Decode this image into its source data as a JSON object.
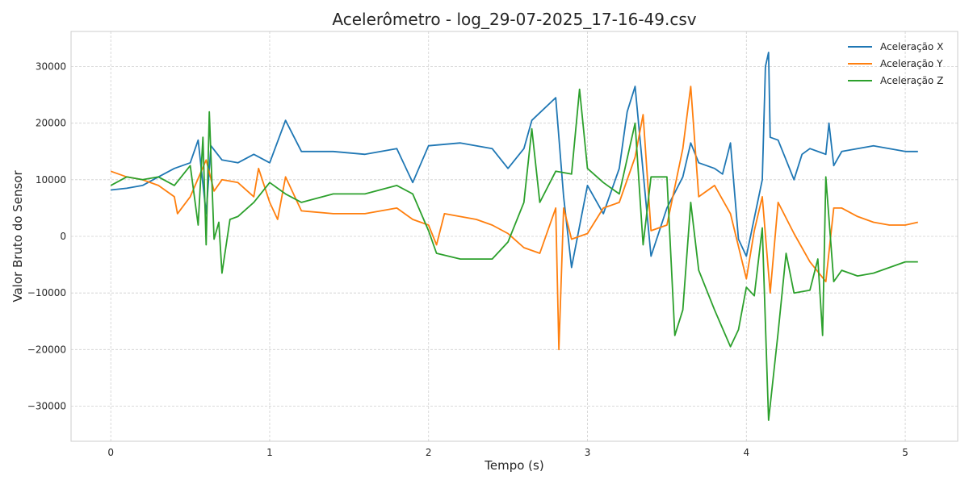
{
  "chart_data": {
    "type": "line",
    "title": "Acelerômetro - log_29-07-2025_17-16-49.csv",
    "xlabel": "Tempo (s)",
    "ylabel": "Valor Bruto do Sensor",
    "xlim": [
      -0.25,
      5.33
    ],
    "ylim": [
      -36200,
      36200
    ],
    "xticks": [
      0,
      1,
      2,
      3,
      4,
      5
    ],
    "xtick_labels": [
      "0",
      "1",
      "2",
      "3",
      "4",
      "5"
    ],
    "yticks": [
      -30000,
      -20000,
      -10000,
      0,
      10000,
      20000,
      30000
    ],
    "ytick_labels": [
      "−30000",
      "−20000",
      "−10000",
      "0",
      "10000",
      "20000",
      "30000"
    ],
    "grid": true,
    "legend_position": "top-right",
    "series": [
      {
        "name": "Aceleração X",
        "color": "#1f77b4",
        "points": [
          [
            0,
            8200
          ],
          [
            0.1,
            8500
          ],
          [
            0.2,
            9000
          ],
          [
            0.3,
            10500
          ],
          [
            0.4,
            12000
          ],
          [
            0.5,
            13000
          ],
          [
            0.55,
            17000
          ],
          [
            0.6,
            4000
          ],
          [
            0.63,
            16000
          ],
          [
            0.7,
            13500
          ],
          [
            0.8,
            13000
          ],
          [
            0.9,
            14500
          ],
          [
            1.0,
            13000
          ],
          [
            1.1,
            20500
          ],
          [
            1.2,
            15000
          ],
          [
            1.4,
            15000
          ],
          [
            1.6,
            14500
          ],
          [
            1.8,
            15500
          ],
          [
            1.9,
            9500
          ],
          [
            2.0,
            16000
          ],
          [
            2.2,
            16500
          ],
          [
            2.4,
            15500
          ],
          [
            2.5,
            12000
          ],
          [
            2.6,
            15500
          ],
          [
            2.65,
            20500
          ],
          [
            2.8,
            24500
          ],
          [
            2.85,
            7000
          ],
          [
            2.9,
            -5500
          ],
          [
            3.0,
            9000
          ],
          [
            3.1,
            4000
          ],
          [
            3.2,
            12000
          ],
          [
            3.25,
            22000
          ],
          [
            3.3,
            26500
          ],
          [
            3.4,
            -3500
          ],
          [
            3.5,
            5000
          ],
          [
            3.6,
            10500
          ],
          [
            3.65,
            16500
          ],
          [
            3.7,
            13000
          ],
          [
            3.8,
            12000
          ],
          [
            3.85,
            11000
          ],
          [
            3.9,
            16500
          ],
          [
            3.95,
            -500
          ],
          [
            4.0,
            -3500
          ],
          [
            4.1,
            10000
          ],
          [
            4.12,
            30000
          ],
          [
            4.14,
            32500
          ],
          [
            4.15,
            17500
          ],
          [
            4.2,
            17000
          ],
          [
            4.25,
            13500
          ],
          [
            4.3,
            10000
          ],
          [
            4.35,
            14500
          ],
          [
            4.4,
            15500
          ],
          [
            4.5,
            14500
          ],
          [
            4.52,
            20000
          ],
          [
            4.55,
            12500
          ],
          [
            4.6,
            15000
          ],
          [
            4.7,
            15500
          ],
          [
            4.8,
            16000
          ],
          [
            4.9,
            15500
          ],
          [
            5.0,
            15000
          ],
          [
            5.08,
            15000
          ]
        ]
      },
      {
        "name": "Aceleração Y",
        "color": "#ff7f0e",
        "points": [
          [
            0,
            11500
          ],
          [
            0.1,
            10500
          ],
          [
            0.2,
            10000
          ],
          [
            0.3,
            9000
          ],
          [
            0.4,
            7000
          ],
          [
            0.42,
            4000
          ],
          [
            0.5,
            7000
          ],
          [
            0.6,
            13500
          ],
          [
            0.65,
            8000
          ],
          [
            0.7,
            10000
          ],
          [
            0.8,
            9500
          ],
          [
            0.9,
            7000
          ],
          [
            0.93,
            12000
          ],
          [
            1.0,
            6000
          ],
          [
            1.05,
            3000
          ],
          [
            1.1,
            10500
          ],
          [
            1.2,
            4500
          ],
          [
            1.4,
            4000
          ],
          [
            1.6,
            4000
          ],
          [
            1.8,
            5000
          ],
          [
            1.9,
            3000
          ],
          [
            2.0,
            2000
          ],
          [
            2.05,
            -1500
          ],
          [
            2.1,
            4000
          ],
          [
            2.3,
            3000
          ],
          [
            2.4,
            2000
          ],
          [
            2.5,
            500
          ],
          [
            2.6,
            -2000
          ],
          [
            2.7,
            -3000
          ],
          [
            2.8,
            5000
          ],
          [
            2.82,
            -20000
          ],
          [
            2.85,
            5000
          ],
          [
            2.9,
            -500
          ],
          [
            3.0,
            500
          ],
          [
            3.1,
            5000
          ],
          [
            3.2,
            6000
          ],
          [
            3.3,
            14000
          ],
          [
            3.35,
            21500
          ],
          [
            3.4,
            1000
          ],
          [
            3.5,
            2000
          ],
          [
            3.6,
            15500
          ],
          [
            3.65,
            26500
          ],
          [
            3.7,
            7000
          ],
          [
            3.8,
            9000
          ],
          [
            3.9,
            4000
          ],
          [
            4.0,
            -7500
          ],
          [
            4.05,
            1000
          ],
          [
            4.1,
            7000
          ],
          [
            4.15,
            -10000
          ],
          [
            4.2,
            6000
          ],
          [
            4.3,
            500
          ],
          [
            4.4,
            -4500
          ],
          [
            4.5,
            -8000
          ],
          [
            4.55,
            5000
          ],
          [
            4.6,
            5000
          ],
          [
            4.7,
            3500
          ],
          [
            4.8,
            2500
          ],
          [
            4.9,
            2000
          ],
          [
            5.0,
            2000
          ],
          [
            5.08,
            2500
          ]
        ]
      },
      {
        "name": "Aceleração Z",
        "color": "#2ca02c",
        "points": [
          [
            0,
            9000
          ],
          [
            0.1,
            10500
          ],
          [
            0.2,
            10000
          ],
          [
            0.3,
            10500
          ],
          [
            0.4,
            9000
          ],
          [
            0.5,
            12500
          ],
          [
            0.55,
            2000
          ],
          [
            0.58,
            17500
          ],
          [
            0.6,
            -1500
          ],
          [
            0.62,
            22000
          ],
          [
            0.65,
            -500
          ],
          [
            0.68,
            2500
          ],
          [
            0.7,
            -6500
          ],
          [
            0.75,
            3000
          ],
          [
            0.8,
            3500
          ],
          [
            0.9,
            6000
          ],
          [
            1.0,
            9500
          ],
          [
            1.1,
            7500
          ],
          [
            1.2,
            6000
          ],
          [
            1.4,
            7500
          ],
          [
            1.6,
            7500
          ],
          [
            1.8,
            9000
          ],
          [
            1.9,
            7500
          ],
          [
            2.0,
            1000
          ],
          [
            2.05,
            -3000
          ],
          [
            2.2,
            -4000
          ],
          [
            2.4,
            -4000
          ],
          [
            2.5,
            -1000
          ],
          [
            2.6,
            6000
          ],
          [
            2.65,
            19000
          ],
          [
            2.7,
            6000
          ],
          [
            2.8,
            11500
          ],
          [
            2.9,
            11000
          ],
          [
            2.95,
            26000
          ],
          [
            3.0,
            12000
          ],
          [
            3.1,
            9500
          ],
          [
            3.2,
            7500
          ],
          [
            3.3,
            20000
          ],
          [
            3.35,
            -1500
          ],
          [
            3.4,
            10500
          ],
          [
            3.5,
            10500
          ],
          [
            3.55,
            -17500
          ],
          [
            3.6,
            -13000
          ],
          [
            3.65,
            6000
          ],
          [
            3.7,
            -6000
          ],
          [
            3.8,
            -13000
          ],
          [
            3.9,
            -19500
          ],
          [
            3.95,
            -16500
          ],
          [
            4.0,
            -9000
          ],
          [
            4.05,
            -10500
          ],
          [
            4.1,
            1500
          ],
          [
            4.14,
            -32500
          ],
          [
            4.2,
            -17000
          ],
          [
            4.25,
            -3000
          ],
          [
            4.3,
            -10000
          ],
          [
            4.4,
            -9500
          ],
          [
            4.45,
            -4000
          ],
          [
            4.48,
            -17500
          ],
          [
            4.5,
            10500
          ],
          [
            4.55,
            -8000
          ],
          [
            4.6,
            -6000
          ],
          [
            4.7,
            -7000
          ],
          [
            4.8,
            -6500
          ],
          [
            4.9,
            -5500
          ],
          [
            5.0,
            -4500
          ],
          [
            5.08,
            -4500
          ]
        ]
      }
    ]
  }
}
